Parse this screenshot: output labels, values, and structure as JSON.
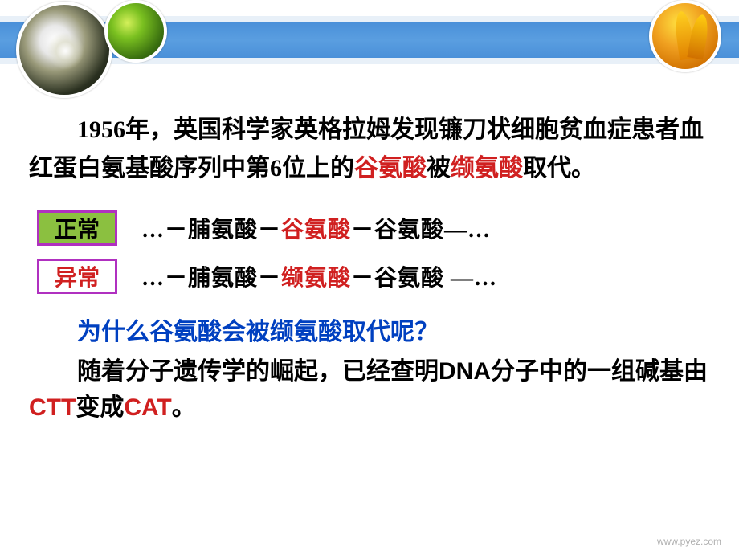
{
  "colors": {
    "topbar": "#4a90d9",
    "red_text": "#d02020",
    "blue_text": "#0040c0",
    "tag_border": "#b030c0",
    "tag_normal_bg": "#8bc040",
    "tag_abnormal_bg": "#ffffff"
  },
  "decorations": {
    "left_circle": "dandelion-photo",
    "mid_circle": "green-leaf-droplet",
    "right_circle": "yellow-tulips"
  },
  "intro": {
    "pre": "1956年，英国科学家英格拉姆发现镰刀状细胞贫血症患者血红蛋白氨基酸序列中第6位上的",
    "glu": "谷氨酸",
    "mid": "被",
    "val": "缬氨酸",
    "post": "取代。"
  },
  "normal": {
    "label": "正常",
    "seq_pre": "…－脯氨酸－",
    "seq_key": "谷氨酸",
    "seq_post": "－谷氨酸—…"
  },
  "abnormal": {
    "label": "异常",
    "seq_pre": "…－脯氨酸－",
    "seq_key": "缬氨酸",
    "seq_post": "－谷氨酸 —…"
  },
  "question": "为什么谷氨酸会被缬氨酸取代呢？",
  "explain": {
    "pre": "随着分子遗传学的崛起，已经查明",
    "dna": "DNA",
    "mid": "分子中的一组碱基由",
    "codon1": "CTT",
    "mid2": "变成",
    "codon2": "CAT",
    "post": "。"
  },
  "footer": "www.pyez.com"
}
